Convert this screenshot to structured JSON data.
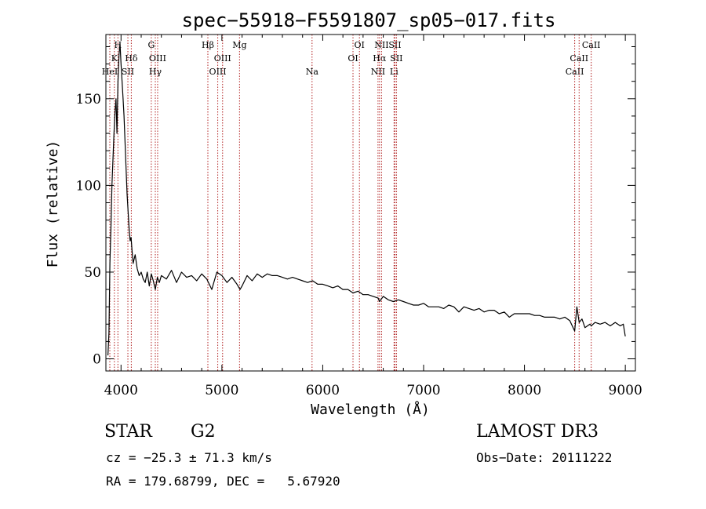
{
  "chart_data": {
    "type": "line",
    "title": "spec−55918−F5591807_sp05−017.fits",
    "xlabel": "Wavelength (Å)",
    "ylabel": "Flux (relative)",
    "xlim": [
      3850,
      9100
    ],
    "ylim": [
      -7,
      187
    ],
    "x_ticks": [
      4000,
      5000,
      6000,
      7000,
      8000,
      9000
    ],
    "x_tick_labels": [
      "4000",
      "5000",
      "6000",
      "7000",
      "8000",
      "9000"
    ],
    "y_ticks": [
      0,
      50,
      100,
      150
    ],
    "y_tick_labels": [
      "0",
      "50",
      "100",
      "150"
    ],
    "series": [
      {
        "name": "flux",
        "x": [
          3870,
          3880,
          3890,
          3900,
          3910,
          3920,
          3930,
          3940,
          3950,
          3960,
          3970,
          3980,
          3990,
          4000,
          4010,
          4020,
          4030,
          4040,
          4050,
          4060,
          4070,
          4080,
          4090,
          4100,
          4110,
          4120,
          4140,
          4160,
          4180,
          4200,
          4220,
          4240,
          4260,
          4280,
          4300,
          4320,
          4340,
          4360,
          4380,
          4400,
          4450,
          4500,
          4550,
          4600,
          4650,
          4700,
          4750,
          4800,
          4850,
          4900,
          4950,
          5000,
          5050,
          5100,
          5150,
          5180,
          5200,
          5250,
          5300,
          5350,
          5400,
          5450,
          5500,
          5550,
          5600,
          5650,
          5700,
          5750,
          5800,
          5850,
          5900,
          5950,
          6000,
          6050,
          6100,
          6150,
          6200,
          6250,
          6300,
          6350,
          6400,
          6450,
          6500,
          6550,
          6563,
          6600,
          6650,
          6700,
          6750,
          6800,
          6850,
          6900,
          6950,
          7000,
          7050,
          7100,
          7150,
          7200,
          7250,
          7300,
          7350,
          7400,
          7450,
          7500,
          7550,
          7600,
          7650,
          7700,
          7750,
          7800,
          7850,
          7900,
          7950,
          8000,
          8050,
          8100,
          8150,
          8200,
          8250,
          8300,
          8350,
          8400,
          8450,
          8498,
          8520,
          8542,
          8570,
          8600,
          8650,
          8662,
          8700,
          8750,
          8800,
          8850,
          8900,
          8950,
          8980,
          9000
        ],
        "y": [
          2,
          15,
          55,
          75,
          100,
          115,
          130,
          142,
          150,
          130,
          160,
          175,
          182,
          170,
          160,
          150,
          140,
          125,
          110,
          95,
          85,
          75,
          68,
          70,
          62,
          55,
          60,
          52,
          48,
          50,
          46,
          44,
          50,
          42,
          49,
          45,
          40,
          47,
          44,
          48,
          46,
          51,
          44,
          50,
          47,
          48,
          45,
          49,
          46,
          40,
          50,
          48,
          44,
          47,
          43,
          40,
          42,
          48,
          45,
          49,
          47,
          49,
          48,
          48,
          47,
          46,
          47,
          46,
          45,
          44,
          45,
          43,
          43,
          42,
          41,
          42,
          40,
          40,
          38,
          39,
          37,
          37,
          36,
          35,
          33,
          36,
          34,
          33,
          34,
          33,
          32,
          31,
          31,
          32,
          30,
          30,
          30,
          29,
          31,
          30,
          27,
          30,
          29,
          28,
          29,
          27,
          28,
          28,
          26,
          27,
          24,
          26,
          26,
          26,
          26,
          25,
          25,
          24,
          24,
          24,
          23,
          24,
          22,
          16,
          30,
          21,
          23,
          18,
          20,
          19,
          21,
          20,
          21,
          19,
          21,
          19,
          20,
          13
        ]
      }
    ],
    "line_marks": [
      {
        "wavelength": 3934,
        "label": "K",
        "tier": 1
      },
      {
        "wavelength": 3969,
        "label": "H",
        "tier": 0
      },
      {
        "wavelength": 3889,
        "label": "HeI",
        "tier": 2
      },
      {
        "wavelength": 4102,
        "label": "Hδ",
        "tier": 1
      },
      {
        "wavelength": 4068,
        "label": "SII",
        "tier": 2
      },
      {
        "wavelength": 4300,
        "label": "G",
        "tier": 0
      },
      {
        "wavelength": 4340,
        "label": "Hγ",
        "tier": 2
      },
      {
        "wavelength": 4363,
        "label": "OIII",
        "tier": 1
      },
      {
        "wavelength": 4861,
        "label": "Hβ",
        "tier": 0
      },
      {
        "wavelength": 4959,
        "label": "OIII",
        "tier": 2
      },
      {
        "wavelength": 5007,
        "label": "OIII",
        "tier": 1
      },
      {
        "wavelength": 5175,
        "label": "Mg",
        "tier": 0
      },
      {
        "wavelength": 5894,
        "label": "Na",
        "tier": 2
      },
      {
        "wavelength": 6300,
        "label": "OI",
        "tier": 1
      },
      {
        "wavelength": 6364,
        "label": "OI",
        "tier": 0
      },
      {
        "wavelength": 6548,
        "label": "NII",
        "tier": 2
      },
      {
        "wavelength": 6563,
        "label": "Hα",
        "tier": 1
      },
      {
        "wavelength": 6583,
        "label": "NII",
        "tier": 0
      },
      {
        "wavelength": 6707,
        "label": "Li",
        "tier": 2
      },
      {
        "wavelength": 6716,
        "label": "SII",
        "tier": 0
      },
      {
        "wavelength": 6731,
        "label": "SII",
        "tier": 1
      },
      {
        "wavelength": 8498,
        "label": "CaII",
        "tier": 2
      },
      {
        "wavelength": 8542,
        "label": "CaII",
        "tier": 1
      },
      {
        "wavelength": 8662,
        "label": "CaII",
        "tier": 0
      }
    ]
  },
  "info": {
    "object_class": "STAR",
    "subclass": "G2",
    "survey": "LAMOST DR3",
    "redshift_line": "cz = −25.3 ± 71.3 km/s",
    "obs_date_line": "Obs−Date: 20111222",
    "coords_line": "RA = 179.68799, DEC =   5.67920"
  },
  "colors": {
    "axis": "#000000",
    "spectrum": "#000000",
    "line_marker": "#b22222"
  }
}
